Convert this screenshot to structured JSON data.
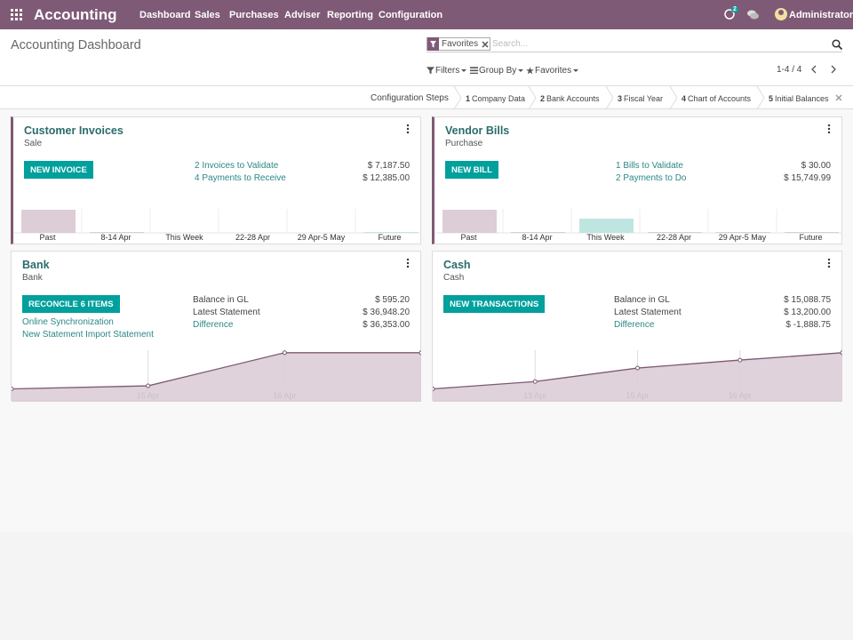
{
  "navbar": {
    "app": "Accounting",
    "menu": [
      "Dashboard",
      "Sales",
      "Purchases",
      "Adviser",
      "Reporting",
      "Configuration"
    ],
    "badge": "2",
    "user": "Administrator"
  },
  "control_panel": {
    "title": "Accounting Dashboard",
    "facet": "Favorites",
    "search_placeholder": "Search...",
    "filters": [
      "Filters",
      "Group By",
      "Favorites"
    ],
    "pager": "1-4 / 4"
  },
  "config_steps": {
    "label": "Configuration Steps",
    "steps": [
      {
        "num": "1",
        "label": "Company Data"
      },
      {
        "num": "2",
        "label": "Bank Accounts"
      },
      {
        "num": "3",
        "label": "Fiscal Year"
      },
      {
        "num": "4",
        "label": "Chart of Accounts"
      },
      {
        "num": "5",
        "label": "Initial Balances"
      }
    ]
  },
  "cards": [
    {
      "title": "Customer Invoices",
      "subtitle": "Sale",
      "button": "NEW INVOICE",
      "actions": [
        {
          "label": "2 Invoices to Validate",
          "amount": "$ 7,187.50"
        },
        {
          "label": "4 Payments to Receive",
          "amount": "$ 12,385.00"
        }
      ],
      "chart": {
        "type": "bar",
        "categories": [
          "Past",
          "8-14 Apr",
          "This Week",
          "22-28 Apr",
          "29 Apr-5 May",
          "Future"
        ],
        "values": [
          26,
          1,
          0,
          0,
          0,
          1
        ],
        "colors": [
          "#dccdd6",
          "#dccdd6",
          "#dccdd6",
          "#dccdd6",
          "#dccdd6",
          "#c6e6e2"
        ],
        "ylim": [
          0,
          30
        ]
      }
    },
    {
      "title": "Vendor Bills",
      "subtitle": "Purchase",
      "button": "NEW BILL",
      "actions": [
        {
          "label": "1 Bills to Validate",
          "amount": "$ 30.00"
        },
        {
          "label": "2 Payments to Do",
          "amount": "$ 15,749.99"
        }
      ],
      "chart": {
        "type": "bar",
        "categories": [
          "Past",
          "8-14 Apr",
          "This Week",
          "22-28 Apr",
          "29 Apr-5 May",
          "Future"
        ],
        "values": [
          26,
          1,
          16,
          1,
          1,
          1
        ],
        "colors": [
          "#dccdd6",
          "#dccdd6",
          "#bfe5e1",
          "#dccdd6",
          "#dccdd6",
          "#dccdd6"
        ],
        "ylim": [
          0,
          30
        ]
      }
    },
    {
      "title": "Bank",
      "subtitle": "Bank",
      "button": "RECONCILE 6 ITEMS",
      "links": [
        "Online Synchronization",
        "New Statement Import Statement"
      ],
      "balances": [
        {
          "label": "Balance in GL",
          "amount": "$ 595.20"
        },
        {
          "label": "Latest Statement",
          "amount": "$ 36,948.20"
        },
        {
          "label": "Difference",
          "amount": "$ 36,353.00"
        }
      ],
      "chart": {
        "type": "line",
        "categories": [
          null,
          "15 Apr",
          "16 Apr",
          null
        ],
        "values": [
          21,
          26,
          80,
          80
        ],
        "color": "#7d5a73",
        "ylim": [
          0,
          100
        ]
      }
    },
    {
      "title": "Cash",
      "subtitle": "Cash",
      "button": "NEW TRANSACTIONS",
      "balances": [
        {
          "label": "Balance in GL",
          "amount": "$ 15,088.75"
        },
        {
          "label": "Latest Statement",
          "amount": "$ 13,200.00"
        },
        {
          "label": "Difference",
          "amount": "$ -1,888.75"
        }
      ],
      "chart": {
        "type": "line",
        "categories": [
          null,
          "13 Apr",
          "15 Apr",
          "16 Apr",
          null
        ],
        "values": [
          21,
          33,
          55,
          68,
          80
        ],
        "color": "#7d5a73",
        "ylim": [
          0,
          100
        ]
      }
    }
  ]
}
